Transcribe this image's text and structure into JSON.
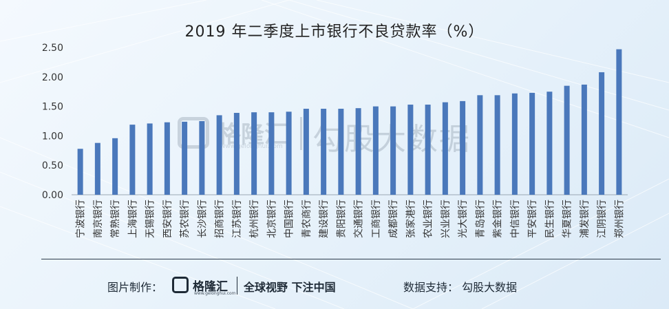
{
  "chart_data": {
    "type": "bar",
    "title": "2019  年二季度上市银行不良贷款率（%）",
    "categories": [
      "宁波银行",
      "南京银行",
      "常熟银行",
      "上海银行",
      "无锡银行",
      "西安银行",
      "苏农银行",
      "长沙银行",
      "招商银行",
      "江苏银行",
      "杭州银行",
      "北京银行",
      "中国银行",
      "青农商行",
      "建设银行",
      "贵阳银行",
      "交通银行",
      "工商银行",
      "成都银行",
      "张家港行",
      "农业银行",
      "兴业银行",
      "光大银行",
      "青岛银行",
      "紫金银行",
      "中信银行",
      "平安银行",
      "民生银行",
      "华夏银行",
      "浦发银行",
      "江阴银行",
      "郑州银行"
    ],
    "values": [
      0.78,
      0.88,
      0.96,
      1.19,
      1.21,
      1.23,
      1.24,
      1.25,
      1.35,
      1.39,
      1.4,
      1.4,
      1.41,
      1.46,
      1.46,
      1.46,
      1.47,
      1.5,
      1.5,
      1.53,
      1.53,
      1.57,
      1.59,
      1.69,
      1.69,
      1.72,
      1.73,
      1.75,
      1.85,
      1.87,
      2.08,
      2.47
    ],
    "ylim": [
      0,
      2.5
    ],
    "yticks": [
      "0.00",
      "0.50",
      "1.00",
      "1.50",
      "2.00",
      "2.50"
    ],
    "grid": false,
    "bar_color": "#4a78bb"
  },
  "watermark": {
    "brand": "格隆汇",
    "url": "www.gelonghui.com",
    "source": "勾股大数据"
  },
  "footer": {
    "made_by_label": "图片制作：",
    "logo_text": "格隆汇",
    "logo_url": "www.gelonghui.com",
    "slogan": "全球视野  下注中国",
    "data_support": "数据支持：  勾股大数据"
  }
}
